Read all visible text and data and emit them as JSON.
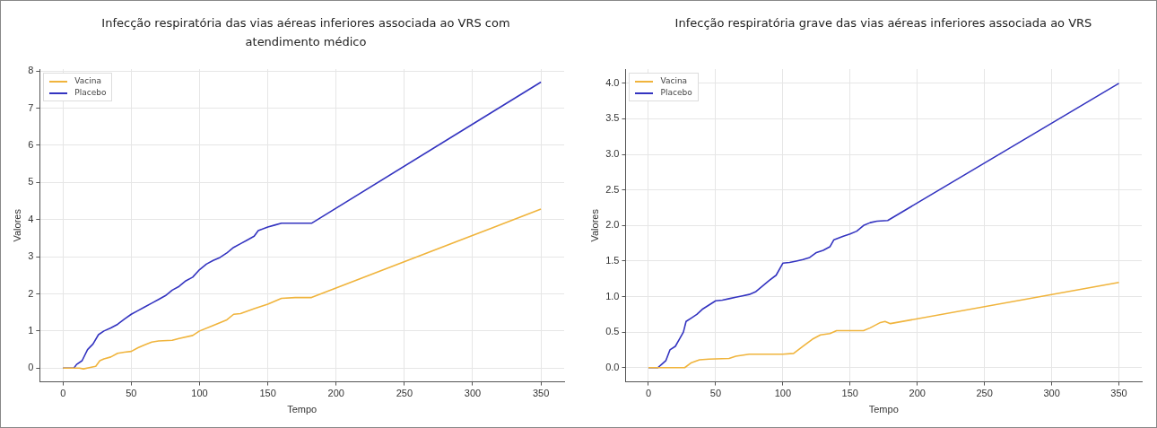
{
  "chart_data": [
    {
      "type": "line",
      "title": "Infecção respiratória das vias aéreas inferiores associada ao VRS com atendimento médico",
      "xlabel": "Tempo",
      "ylabel": "Valores",
      "xlim": [
        -17,
        367
      ],
      "ylim": [
        -0.37,
        8.05
      ],
      "xticks": [
        0,
        50,
        100,
        150,
        200,
        250,
        300,
        350
      ],
      "yticks": [
        0,
        1,
        2,
        3,
        4,
        5,
        6,
        7,
        8
      ],
      "grid": true,
      "legend": "top left",
      "marker": "none",
      "line_style": "solid",
      "series": [
        {
          "name": "Vacina",
          "color": "#f0b43c",
          "x": [
            0,
            8,
            12,
            15,
            20,
            24,
            27,
            30,
            35,
            40,
            45,
            50,
            55,
            60,
            65,
            70,
            80,
            85,
            95,
            100,
            110,
            120,
            125,
            130,
            140,
            150,
            160,
            170,
            182,
            350
          ],
          "values": [
            0,
            0,
            0,
            -0.02,
            0.02,
            0.05,
            0.2,
            0.25,
            0.3,
            0.4,
            0.43,
            0.45,
            0.55,
            0.63,
            0.7,
            0.73,
            0.75,
            0.8,
            0.88,
            1.0,
            1.15,
            1.3,
            1.45,
            1.47,
            1.6,
            1.72,
            1.88,
            1.9,
            1.9,
            4.28
          ]
        },
        {
          "name": "Placebo",
          "color": "#3434c0",
          "x": [
            0,
            8,
            10,
            14,
            18,
            22,
            26,
            30,
            35,
            40,
            45,
            50,
            55,
            60,
            65,
            70,
            75,
            80,
            85,
            90,
            95,
            100,
            105,
            110,
            115,
            120,
            125,
            130,
            135,
            140,
            143,
            150,
            155,
            160,
            170,
            182,
            350
          ],
          "values": [
            0,
            0,
            0.1,
            0.2,
            0.5,
            0.65,
            0.9,
            1.0,
            1.08,
            1.18,
            1.32,
            1.45,
            1.55,
            1.65,
            1.75,
            1.85,
            1.95,
            2.1,
            2.2,
            2.35,
            2.45,
            2.65,
            2.8,
            2.9,
            2.98,
            3.1,
            3.25,
            3.35,
            3.45,
            3.55,
            3.7,
            3.8,
            3.85,
            3.9,
            3.9,
            3.9,
            7.7
          ]
        }
      ]
    },
    {
      "type": "line",
      "title": "Infecção respiratória grave das vias aéreas inferiores associada ao VRS",
      "xlabel": "Tempo",
      "ylabel": "Valores",
      "xlim": [
        -17,
        367
      ],
      "ylim": [
        -0.2,
        4.2
      ],
      "xticks": [
        0,
        50,
        100,
        150,
        200,
        250,
        300,
        350
      ],
      "yticks": [
        {
          "value": 0,
          "label": "0.0"
        },
        {
          "value": 0.5,
          "label": "0.5"
        },
        {
          "value": 1,
          "label": "1.0"
        },
        {
          "value": 1.5,
          "label": "1.5"
        },
        {
          "value": 2,
          "label": "2.0"
        },
        {
          "value": 2.5,
          "label": "2.5"
        },
        {
          "value": 3,
          "label": "3.0"
        },
        {
          "value": 3.5,
          "label": "3.5"
        },
        {
          "value": 4,
          "label": "4.0"
        }
      ],
      "grid": true,
      "legend": "top left",
      "marker": "none",
      "line_style": "solid",
      "series": [
        {
          "name": "Vacina",
          "color": "#f0b43c",
          "x": [
            0,
            10,
            27,
            32,
            38,
            45,
            60,
            65,
            75,
            100,
            108,
            115,
            122,
            128,
            135,
            140,
            160,
            165,
            172,
            176,
            180,
            350
          ],
          "values": [
            0,
            0,
            0,
            0.07,
            0.11,
            0.12,
            0.13,
            0.16,
            0.19,
            0.19,
            0.2,
            0.3,
            0.4,
            0.46,
            0.48,
            0.52,
            0.52,
            0.56,
            0.63,
            0.65,
            0.62,
            1.2
          ]
        },
        {
          "name": "Placebo",
          "color": "#3434c0",
          "x": [
            0,
            7,
            10,
            13,
            16,
            20,
            23,
            26,
            28,
            32,
            36,
            40,
            45,
            50,
            55,
            60,
            65,
            70,
            75,
            80,
            85,
            90,
            95,
            100,
            105,
            110,
            115,
            120,
            125,
            130,
            135,
            138,
            145,
            150,
            155,
            160,
            165,
            170,
            178,
            350
          ],
          "values": [
            0,
            0,
            0.05,
            0.1,
            0.25,
            0.3,
            0.4,
            0.5,
            0.65,
            0.7,
            0.75,
            0.82,
            0.88,
            0.94,
            0.95,
            0.97,
            0.99,
            1.01,
            1.03,
            1.07,
            1.15,
            1.23,
            1.3,
            1.47,
            1.48,
            1.5,
            1.52,
            1.55,
            1.62,
            1.65,
            1.7,
            1.8,
            1.85,
            1.88,
            1.92,
            2.0,
            2.04,
            2.06,
            2.07,
            4.0
          ]
        }
      ]
    }
  ]
}
